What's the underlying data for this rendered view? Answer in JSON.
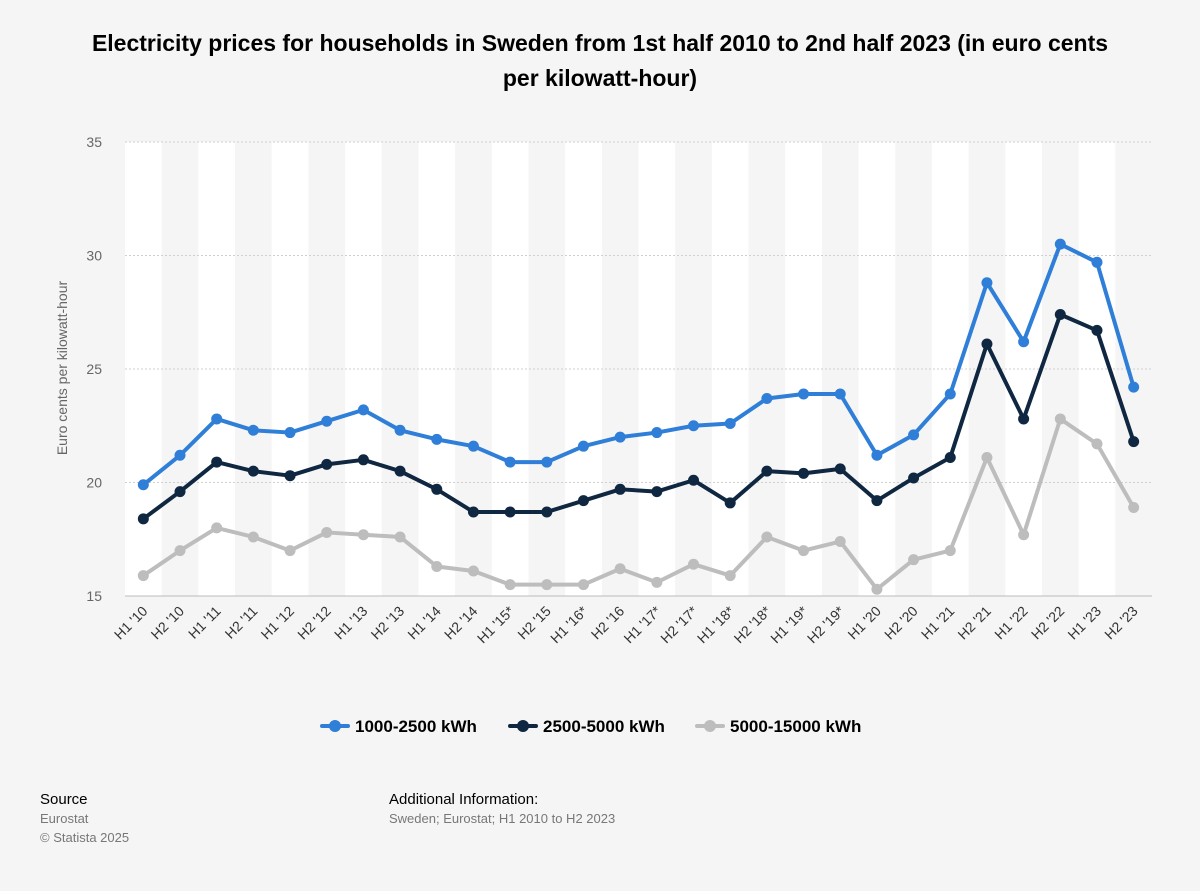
{
  "chart_data": {
    "type": "line",
    "title": "Electricity prices for households in Sweden from 1st half 2010 to 2nd half 2023 (in euro cents per kilowatt-hour)",
    "xlabel": "",
    "ylabel": "Euro cents per kilowatt-hour",
    "ylim": [
      15,
      35
    ],
    "yticks": [
      15,
      20,
      25,
      30,
      35
    ],
    "grid": true,
    "legend_position": "bottom",
    "categories": [
      "H1 '10",
      "H2 '10",
      "H1 '11",
      "H2 '11",
      "H1 '12",
      "H2 '12",
      "H1 '13",
      "H2 '13",
      "H1 '14",
      "H2 '14",
      "H1 '15*",
      "H2 '15",
      "H1 '16*",
      "H2 '16",
      "H1 '17*",
      "H2 '17*",
      "H1 '18*",
      "H2 '18*",
      "H1 '19*",
      "H2 '19*",
      "H1 '20",
      "H2 '20",
      "H1 '21",
      "H2 '21",
      "H1 '22",
      "H2 '22",
      "H1 '23",
      "H2 '23"
    ],
    "series": [
      {
        "name": "1000-2500 kWh",
        "color": "#2f7ed8",
        "values": [
          19.9,
          21.2,
          22.8,
          22.3,
          22.2,
          22.7,
          23.2,
          22.3,
          21.9,
          21.6,
          20.9,
          20.9,
          21.6,
          22.0,
          22.2,
          22.5,
          22.6,
          23.7,
          23.9,
          23.9,
          21.2,
          22.1,
          23.9,
          28.8,
          26.2,
          30.5,
          29.7,
          24.2
        ]
      },
      {
        "name": "2500-5000 kWh",
        "color": "#0f2740",
        "values": [
          18.4,
          19.6,
          20.9,
          20.5,
          20.3,
          20.8,
          21.0,
          20.5,
          19.7,
          18.7,
          18.7,
          18.7,
          19.2,
          19.7,
          19.6,
          20.1,
          19.1,
          20.5,
          20.4,
          20.6,
          19.2,
          20.2,
          21.1,
          26.1,
          22.8,
          27.4,
          26.7,
          21.8
        ]
      },
      {
        "name": "5000-15000 kWh",
        "color": "#bdbdbd",
        "values": [
          15.9,
          17.0,
          18.0,
          17.6,
          17.0,
          17.8,
          17.7,
          17.6,
          16.3,
          16.1,
          15.5,
          15.5,
          15.5,
          16.2,
          15.6,
          16.4,
          15.9,
          17.6,
          17.0,
          17.4,
          15.3,
          16.6,
          17.0,
          21.1,
          17.7,
          22.8,
          21.7,
          18.9
        ]
      }
    ]
  },
  "footer": {
    "source_heading": "Source",
    "source_name": "Eurostat",
    "copyright": "© Statista 2025",
    "info_heading": "Additional Information:",
    "info_text": "Sweden; Eurostat; H1 2010 to H2 2023"
  }
}
